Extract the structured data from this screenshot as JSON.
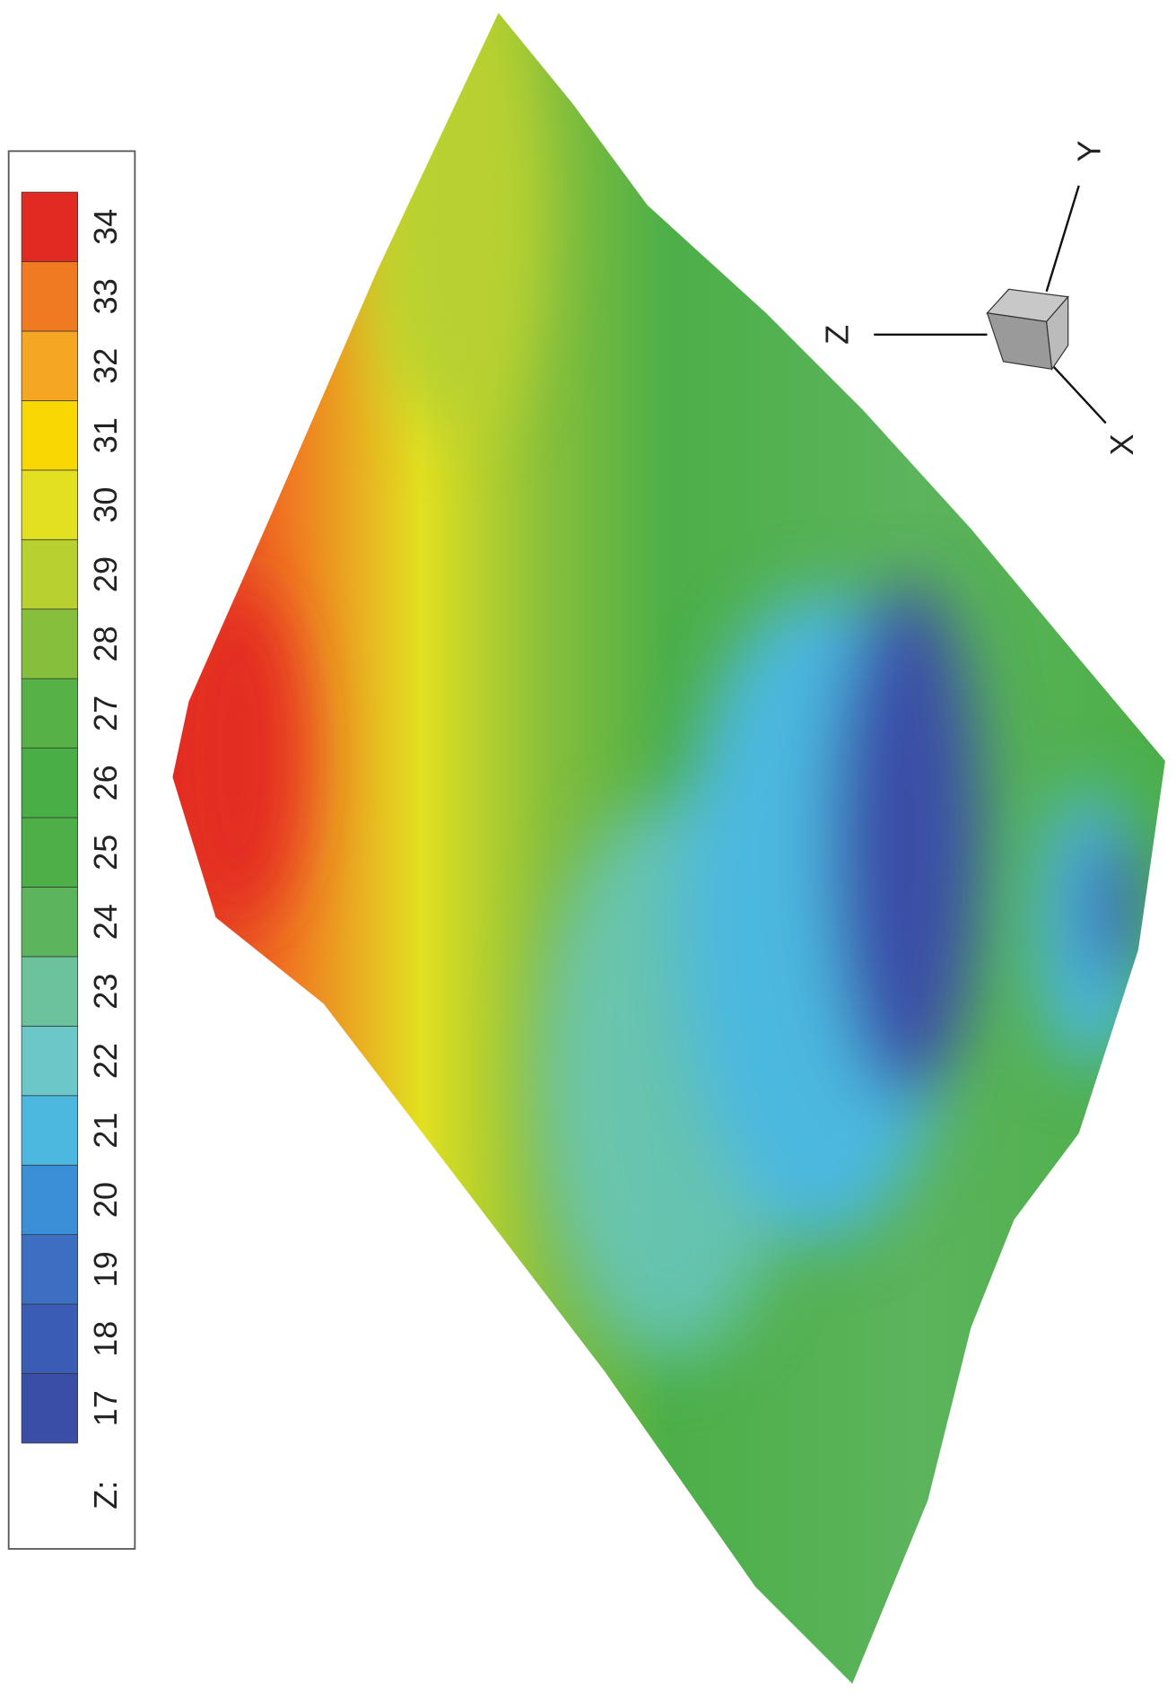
{
  "chart_data": {
    "type": "surface",
    "colorbar": {
      "label": "Z:",
      "ticks": [
        17,
        18,
        19,
        20,
        21,
        22,
        23,
        24,
        25,
        26,
        27,
        28,
        29,
        30,
        31,
        32,
        33,
        34
      ],
      "zlim": [
        16.5,
        34.5
      ],
      "colors": [
        "#3a4ea8",
        "#3b5cb5",
        "#3c6ec2",
        "#3a8fd6",
        "#4cb8e0",
        "#6cc8c8",
        "#6cc29a",
        "#5cb45c",
        "#4caf48",
        "#4aae46",
        "#56b246",
        "#86bf3c",
        "#b8d030",
        "#e2e020",
        "#f8d800",
        "#f5a623",
        "#f07a22",
        "#e32a22"
      ]
    },
    "axis_labels": {
      "x": "X",
      "y": "Y",
      "z": "Z"
    }
  }
}
